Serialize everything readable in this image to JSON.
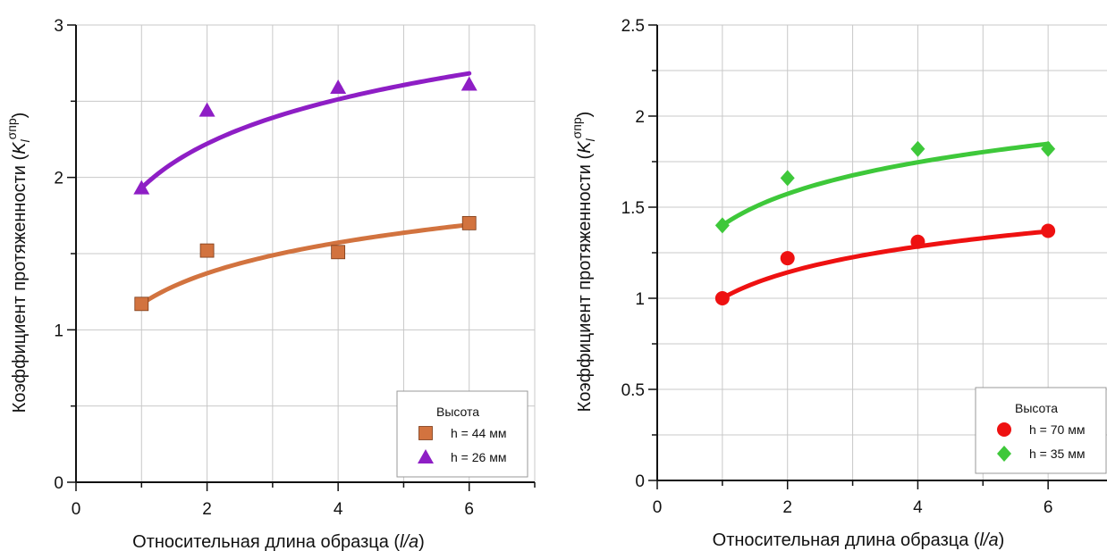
{
  "chart_data": [
    {
      "type": "scatter",
      "xlabel_main": "Относительная длина образца (",
      "xlabel_var": "l/a",
      "xlabel_close": ")",
      "ylabel_main": "Коэффициент протяженности (",
      "ylabel_var": "K",
      "ylabel_sub": "l",
      "ylabel_sup": "σпр",
      "ylabel_close": ")",
      "xlim": [
        0,
        7
      ],
      "ylim": [
        0,
        3
      ],
      "xticks": [
        0,
        2,
        4,
        6
      ],
      "xtick_labels": [
        "0",
        "2",
        "4",
        "6"
      ],
      "yticks": [
        0,
        1,
        2,
        3
      ],
      "ytick_labels": [
        "0",
        "1",
        "2",
        "3"
      ],
      "grid": true,
      "legend_position": "bottom-right",
      "legend_title": "Высота",
      "series": [
        {
          "name": "h = 44 мм",
          "marker": "square",
          "color": "#d2733f",
          "x": [
            1,
            2,
            4,
            6
          ],
          "y": [
            1.17,
            1.52,
            1.51,
            1.7
          ],
          "fit": {
            "a": 1.17,
            "b": 0.29
          }
        },
        {
          "name": "h = 26 мм",
          "marker": "triangle",
          "color": "#8e1ec5",
          "x": [
            1,
            2,
            4,
            6
          ],
          "y": [
            1.93,
            2.44,
            2.59,
            2.61
          ],
          "fit": {
            "a": 1.93,
            "b": 0.42
          }
        }
      ]
    },
    {
      "type": "scatter",
      "xlabel_main": "Относительная длина образца (",
      "xlabel_var": "l/a",
      "xlabel_close": ")",
      "ylabel_main": "Коэффициент протяженности (",
      "ylabel_var": "K",
      "ylabel_sub": "l",
      "ylabel_sup": "σпр",
      "ylabel_close": ")",
      "xlim": [
        0,
        7
      ],
      "ylim": [
        0,
        2.5
      ],
      "xticks": [
        0,
        2,
        4,
        6
      ],
      "xtick_labels": [
        "0",
        "2",
        "4",
        "6"
      ],
      "yticks": [
        0,
        0.5,
        1,
        1.5,
        2,
        2.5
      ],
      "ytick_labels": [
        "0",
        "0.5",
        "1",
        "1.5",
        "2",
        "2.5"
      ],
      "grid": true,
      "legend_position": "bottom-right",
      "legend_title": "Высота",
      "series": [
        {
          "name": "h = 70 мм",
          "marker": "circle",
          "color": "#ee1111",
          "x": [
            1,
            2,
            4,
            6
          ],
          "y": [
            1.0,
            1.22,
            1.31,
            1.37
          ],
          "fit": {
            "a": 1.0,
            "b": 0.205
          }
        },
        {
          "name": "h = 35 мм",
          "marker": "diamond",
          "color": "#3ec83a",
          "x": [
            1,
            2,
            4,
            6
          ],
          "y": [
            1.4,
            1.66,
            1.82,
            1.82
          ],
          "fit": {
            "a": 1.4,
            "b": 0.25
          }
        }
      ]
    }
  ]
}
